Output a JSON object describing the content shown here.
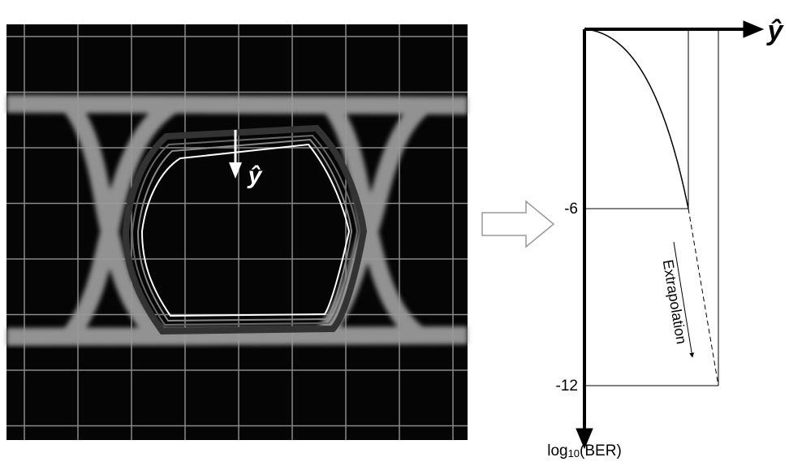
{
  "eye": {
    "arrow_label": "ŷ"
  },
  "plot": {
    "x_axis_label": "ŷ",
    "tick_labels": [
      "-6",
      "-12"
    ],
    "y_axis_label": {
      "base": "log",
      "subscript": "10",
      "rest": "(BER)"
    },
    "annotation": "Extrapolation"
  }
}
